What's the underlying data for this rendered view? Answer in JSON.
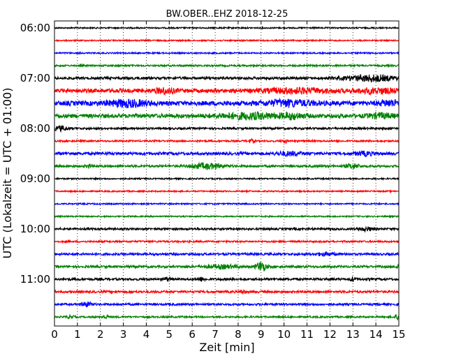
{
  "chart_data": {
    "type": "line",
    "title": "BW.OBER..EHZ 2018-12-25",
    "xlabel": "Zeit  [min]",
    "ylabel": "UTC (Lokalzeit = UTC + 01:00)",
    "xlim": [
      0,
      15
    ],
    "x_ticks": [
      "0",
      "1",
      "2",
      "3",
      "4",
      "5",
      "6",
      "7",
      "8",
      "9",
      "10",
      "11",
      "12",
      "13",
      "14",
      "15"
    ],
    "y_tick_labels": [
      "06:00",
      "07:00",
      "08:00",
      "09:00",
      "10:00",
      "11:00"
    ],
    "traces_per_hour": 4,
    "grid": true,
    "trace_colors": [
      "#000000",
      "#ff0000",
      "#0000ff",
      "#008000"
    ],
    "traces": [
      {
        "start": "06:00",
        "amplitude": 0.12,
        "events": []
      },
      {
        "start": "06:15",
        "amplitude": 0.12,
        "events": []
      },
      {
        "start": "06:30",
        "amplitude": 0.12,
        "events": []
      },
      {
        "start": "06:45",
        "amplitude": 0.15,
        "events": []
      },
      {
        "start": "07:00",
        "amplitude": 0.22,
        "events": [
          [
            13.8,
            0.5,
            0.8
          ]
        ]
      },
      {
        "start": "07:15",
        "amplitude": 0.35,
        "events": [
          [
            4.8,
            0.4,
            0.3
          ],
          [
            10.5,
            0.35,
            1.0
          ],
          [
            14.0,
            0.35,
            0.6
          ]
        ]
      },
      {
        "start": "07:30",
        "amplitude": 0.4,
        "events": [
          [
            3.2,
            0.5,
            0.6
          ],
          [
            10.2,
            0.45,
            0.7
          ],
          [
            14.6,
            0.4,
            0.3
          ]
        ]
      },
      {
        "start": "07:45",
        "amplitude": 0.35,
        "events": [
          [
            8.5,
            0.45,
            1.0
          ],
          [
            10.4,
            0.4,
            0.3
          ],
          [
            14.2,
            0.35,
            0.4
          ]
        ]
      },
      {
        "start": "08:00",
        "amplitude": 0.18,
        "events": [
          [
            0.3,
            0.4,
            0.2
          ]
        ]
      },
      {
        "start": "08:15",
        "amplitude": 0.15,
        "events": [
          [
            8.6,
            0.25,
            0.1
          ],
          [
            10.0,
            0.3,
            0.1
          ]
        ]
      },
      {
        "start": "08:30",
        "amplitude": 0.25,
        "events": [
          [
            10.2,
            0.3,
            0.4
          ],
          [
            13.5,
            0.3,
            0.3
          ]
        ]
      },
      {
        "start": "08:45",
        "amplitude": 0.2,
        "events": [
          [
            1.5,
            0.3,
            0.1
          ],
          [
            6.6,
            0.45,
            0.5
          ],
          [
            13.0,
            0.4,
            0.2
          ]
        ]
      },
      {
        "start": "09:00",
        "amplitude": 0.12,
        "events": []
      },
      {
        "start": "09:15",
        "amplitude": 0.12,
        "events": []
      },
      {
        "start": "09:30",
        "amplitude": 0.12,
        "events": []
      },
      {
        "start": "09:45",
        "amplitude": 0.12,
        "events": []
      },
      {
        "start": "10:00",
        "amplitude": 0.18,
        "events": [
          [
            13.6,
            0.3,
            0.2
          ]
        ]
      },
      {
        "start": "10:15",
        "amplitude": 0.15,
        "events": []
      },
      {
        "start": "10:30",
        "amplitude": 0.2,
        "events": [
          [
            11.8,
            0.25,
            0.3
          ]
        ]
      },
      {
        "start": "10:45",
        "amplitude": 0.2,
        "events": [
          [
            7.3,
            0.3,
            0.5
          ],
          [
            9.0,
            0.9,
            0.15
          ],
          [
            15.0,
            0.3,
            0.1
          ]
        ]
      },
      {
        "start": "11:00",
        "amplitude": 0.2,
        "events": [
          [
            4.9,
            0.3,
            0.1
          ],
          [
            6.4,
            0.3,
            0.1
          ],
          [
            13.0,
            0.3,
            0.1
          ]
        ]
      },
      {
        "start": "11:15",
        "amplitude": 0.2,
        "events": [
          [
            8.2,
            0.25,
            0.1
          ]
        ]
      },
      {
        "start": "11:30",
        "amplitude": 0.18,
        "events": [
          [
            1.4,
            0.4,
            0.15
          ]
        ]
      },
      {
        "start": "11:45",
        "amplitude": 0.15,
        "events": [
          [
            0.7,
            0.3,
            0.1
          ],
          [
            2.2,
            0.3,
            0.1
          ],
          [
            14.9,
            0.35,
            0.1
          ]
        ]
      }
    ]
  }
}
